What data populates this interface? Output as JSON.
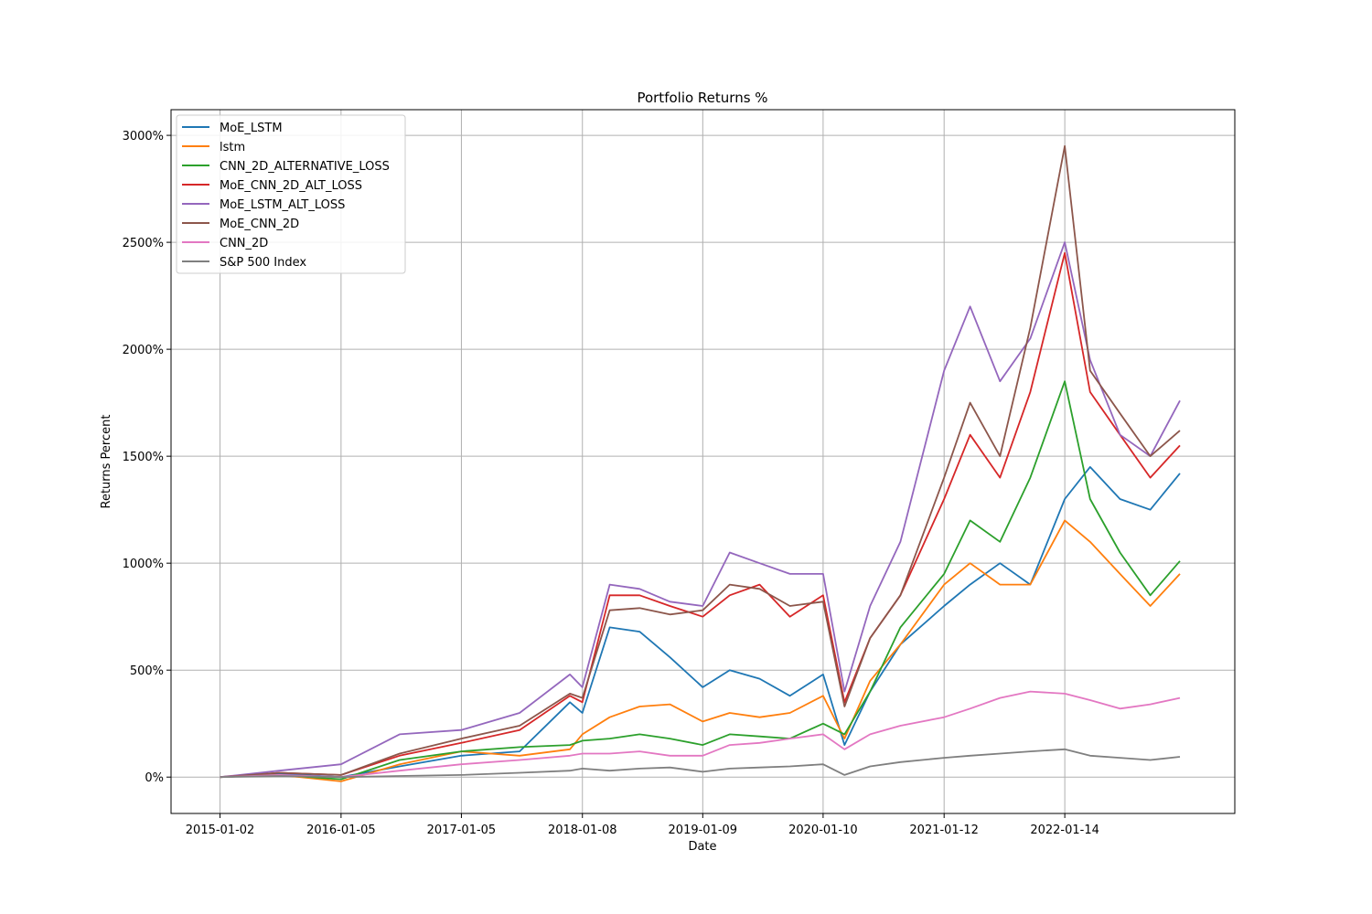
{
  "chart_data": {
    "type": "line",
    "title": "Portfolio Returns %",
    "xlabel": "Date",
    "ylabel": "Returns Percent",
    "x_tick_labels": [
      "2015-01-02",
      "2016-01-05",
      "2017-01-05",
      "2018-01-08",
      "2019-01-09",
      "2020-01-10",
      "2021-01-12",
      "2022-01-14"
    ],
    "y_tick_labels": [
      "0%",
      "500%",
      "1000%",
      "1500%",
      "2000%",
      "2500%",
      "3000%"
    ],
    "y_ticks": [
      0,
      500,
      1000,
      1500,
      2000,
      2500,
      3000
    ],
    "xlim": [
      "2014-08-06",
      "2023-06-15"
    ],
    "ylim": [
      -170,
      3120
    ],
    "grid": true,
    "legend_position": "upper left",
    "x": [
      "2015-01-02",
      "2015-07-01",
      "2016-01-05",
      "2016-07-01",
      "2017-01-05",
      "2017-07-01",
      "2017-12-01",
      "2018-01-08",
      "2018-04-01",
      "2018-07-01",
      "2018-10-01",
      "2019-01-09",
      "2019-04-01",
      "2019-07-01",
      "2019-10-01",
      "2020-01-10",
      "2020-03-15",
      "2020-06-01",
      "2020-09-01",
      "2021-01-12",
      "2021-04-01",
      "2021-07-01",
      "2021-10-01",
      "2022-01-14",
      "2022-04-01",
      "2022-07-01",
      "2022-10-01",
      "2022-12-30"
    ],
    "series": [
      {
        "name": "MoE_LSTM",
        "color": "#1f77b4",
        "values": [
          0,
          15,
          0,
          50,
          100,
          120,
          350,
          300,
          700,
          680,
          560,
          420,
          500,
          460,
          380,
          480,
          150,
          400,
          620,
          800,
          900,
          1000,
          900,
          1300,
          1450,
          1300,
          1250,
          1420
        ]
      },
      {
        "name": "lstm",
        "color": "#ff7f0e",
        "values": [
          0,
          10,
          -20,
          60,
          120,
          100,
          130,
          200,
          280,
          330,
          340,
          260,
          300,
          280,
          300,
          380,
          180,
          450,
          620,
          900,
          1000,
          900,
          900,
          1200,
          1100,
          950,
          800,
          950
        ]
      },
      {
        "name": "CNN_2D_ALTERNATIVE_LOSS",
        "color": "#2ca02c",
        "values": [
          0,
          10,
          -10,
          80,
          120,
          140,
          150,
          170,
          180,
          200,
          180,
          150,
          200,
          190,
          180,
          250,
          200,
          400,
          700,
          950,
          1200,
          1100,
          1400,
          1850,
          1300,
          1050,
          850,
          1010
        ]
      },
      {
        "name": "MoE_CNN_2D_ALT_LOSS",
        "color": "#d62728",
        "values": [
          0,
          20,
          10,
          100,
          160,
          220,
          380,
          350,
          850,
          850,
          800,
          750,
          850,
          900,
          750,
          850,
          350,
          650,
          850,
          1300,
          1600,
          1400,
          1800,
          2450,
          1800,
          1600,
          1400,
          1550
        ]
      },
      {
        "name": "MoE_LSTM_ALT_LOSS",
        "color": "#9467bd",
        "values": [
          0,
          30,
          60,
          200,
          220,
          300,
          480,
          420,
          900,
          880,
          820,
          800,
          1050,
          1000,
          950,
          950,
          400,
          800,
          1100,
          1900,
          2200,
          1850,
          2050,
          2500,
          1950,
          1600,
          1500,
          1760
        ]
      },
      {
        "name": "MoE_CNN_2D",
        "color": "#8c564b",
        "values": [
          0,
          20,
          10,
          110,
          180,
          240,
          390,
          370,
          780,
          790,
          760,
          780,
          900,
          880,
          800,
          820,
          330,
          650,
          850,
          1400,
          1750,
          1500,
          2100,
          2950,
          1900,
          1700,
          1500,
          1620
        ]
      },
      {
        "name": "CNN_2D",
        "color": "#e377c2",
        "values": [
          0,
          10,
          0,
          30,
          60,
          80,
          100,
          110,
          110,
          120,
          100,
          100,
          150,
          160,
          180,
          200,
          130,
          200,
          240,
          280,
          320,
          370,
          400,
          390,
          360,
          320,
          340,
          370
        ]
      },
      {
        "name": "S&P 500 Index",
        "color": "#7f7f7f",
        "values": [
          0,
          5,
          0,
          5,
          10,
          20,
          30,
          40,
          30,
          40,
          45,
          25,
          40,
          45,
          50,
          60,
          10,
          50,
          70,
          90,
          100,
          110,
          120,
          130,
          100,
          90,
          80,
          95
        ]
      }
    ]
  }
}
